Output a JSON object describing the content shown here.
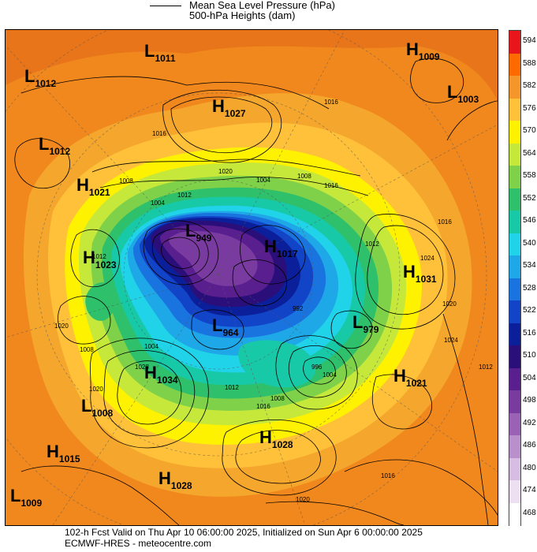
{
  "legend": {
    "mslp": "Mean Sea Level Pressure (hPa)",
    "heights": "500-hPa Heights (dam)"
  },
  "footer": {
    "valid_line": "102-h Fcst Valid on Thu Apr 10 06:00:00 2025, Initialized on Sun Apr  6 00:00:00 2025",
    "source_line": "ECMWF-HRES  - meteocentre.com"
  },
  "colorbar": {
    "labels": [
      "594",
      "588",
      "582",
      "576",
      "570",
      "564",
      "558",
      "552",
      "546",
      "540",
      "534",
      "528",
      "522",
      "516",
      "510",
      "504",
      "498",
      "492",
      "486",
      "480",
      "474",
      "468"
    ],
    "colors": [
      "#e8151b",
      "#ff6a00",
      "#f5962a",
      "#ffc03a",
      "#fff200",
      "#c6e83a",
      "#7fd14a",
      "#2ec06a",
      "#18c9a8",
      "#20d3e8",
      "#1fa8e8",
      "#1a74e0",
      "#1244c8",
      "#0b1f9a",
      "#2a0f7a",
      "#5a1f8f",
      "#7a3ba0",
      "#9a62b4",
      "#b98fcc",
      "#d8bde2",
      "#ede0f0",
      "#ffffff"
    ]
  },
  "systems": [
    {
      "type": "L",
      "value": "1011"
    },
    {
      "type": "H",
      "value": "1009"
    },
    {
      "type": "L",
      "value": "1012"
    },
    {
      "type": "L",
      "value": "1003"
    },
    {
      "type": "H",
      "value": "1027"
    },
    {
      "type": "L",
      "value": "1012"
    },
    {
      "type": "H",
      "value": "1021"
    },
    {
      "type": "L",
      "value": "949"
    },
    {
      "type": "H",
      "value": "1017"
    },
    {
      "type": "H",
      "value": "1023"
    },
    {
      "type": "H",
      "value": "1031"
    },
    {
      "type": "L",
      "value": "964"
    },
    {
      "type": "L",
      "value": "979"
    },
    {
      "type": "H",
      "value": "1034"
    },
    {
      "type": "H",
      "value": "1021"
    },
    {
      "type": "L",
      "value": "1008"
    },
    {
      "type": "H",
      "value": "1015"
    },
    {
      "type": "H",
      "value": "1028"
    },
    {
      "type": "H",
      "value": "1028"
    },
    {
      "type": "L",
      "value": "1009"
    }
  ],
  "isobar_labels": [
    "1016",
    "1020",
    "1008",
    "1004",
    "1012",
    "1004",
    "1008",
    "1016",
    "1012",
    "1016",
    "1024",
    "1012",
    "1020",
    "1008",
    "1004",
    "1028",
    "1020",
    "1012",
    "1016",
    "1008",
    "1020",
    "1016",
    "1020",
    "1024",
    "1012",
    "1016",
    "992",
    "996",
    "1004"
  ]
}
